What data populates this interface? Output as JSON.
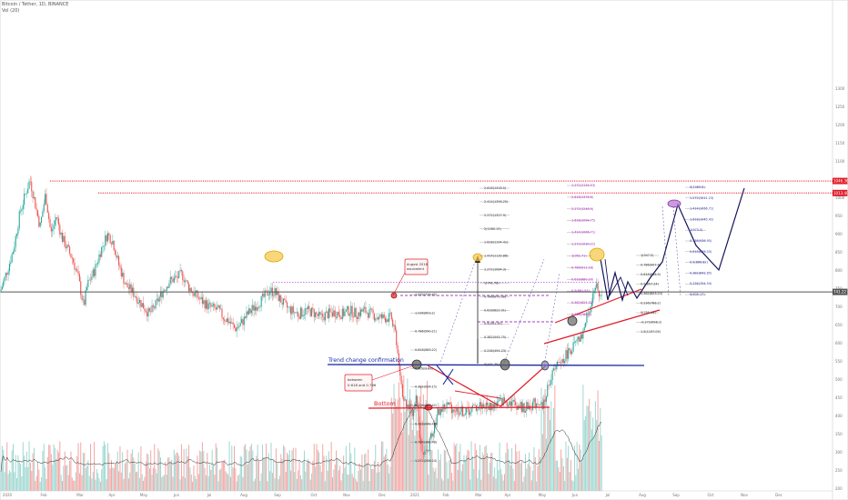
{
  "header": {
    "symbol": "Bitcoin / Tether, 1D, BINANCE",
    "indicator": "Vol (20)"
  },
  "chart_data": {
    "type": "candlestick",
    "price_axis": {
      "ticks": [
        1300,
        1250,
        1200,
        1150,
        1100,
        1050,
        1000,
        950,
        900,
        850,
        800,
        750,
        700,
        650,
        600,
        550,
        500,
        450,
        400,
        350,
        300,
        250,
        200
      ],
      "ylim": [
        190,
        1340
      ]
    },
    "time_axis": {
      "ticks": [
        "2020",
        "Feb",
        "Mar",
        "Apr",
        "May",
        "Jun",
        "Jul",
        "Aug",
        "Sep",
        "Oct",
        "Nov",
        "Dec",
        "2021",
        "Feb",
        "Mar",
        "Apr",
        "May",
        "Jun",
        "Jul",
        "Aug",
        "Sep",
        "Oct",
        "Nov",
        "Dec"
      ]
    },
    "price_labels": [
      {
        "value": "1046.36",
        "price": 1046,
        "color": "#e11d2a"
      },
      {
        "value": "1013.40",
        "price": 1013,
        "color": "#e11d2a"
      },
      {
        "value": "741.22",
        "price": 741,
        "color": "#555555"
      }
    ],
    "horizontal_levels": [
      {
        "price": 1046,
        "color": "#e11d2a",
        "style": "dotted"
      },
      {
        "price": 1013,
        "color": "#e11d2a",
        "style": "dotted"
      },
      {
        "price": 741,
        "color": "#555555",
        "style": "solid"
      },
      {
        "price": 767,
        "color": "#a040c0",
        "style": "dotted"
      }
    ],
    "annotations": [
      {
        "text": "Trend change confirmation",
        "color": "#1a2aa0"
      },
      {
        "text": "Bottom",
        "color": "#e11d2a"
      },
      {
        "text": "August 2018 equivalent",
        "color": "#333333"
      },
      {
        "text": "between 0.618 and 0.786",
        "color": "#333333"
      }
    ],
    "fib_left": [
      "2.618(1418.5)",
      "2.414(1356.25)",
      "2.272(1327.9)",
      "2(1280.15)",
      "1.618(1194.41)",
      "1.414(1130.86)",
      "1.272(1084.3)",
      "1(741.78)",
      "0.786(670.38)",
      "0.618(622.01)",
      "0.5(591.35)",
      "0.382(545.75)",
      "0.236(494.23)",
      "0(441.75)"
    ],
    "fib_mid": [
      "1.272(719.45)",
      "1.036(653.2)",
      "0.786(590.21)",
      "0.618(583.22)",
      "0.5(523.83)",
      "0.382(524.15)",
      "0.236(482.42)",
      "0.618(448.45)",
      "0.786(388.48)",
      "1.272(256.24)"
    ],
    "fib_right_magenta": [
      "1.272(1134.53)",
      "2.618(1376.6)",
      "2.272(1248.9)",
      "1.618(1099.75)",
      "1.414(1066.71)",
      "1.272(1030.22)",
      "1(962.71)",
      "0.786(911.18)",
      "0.618(880.29)",
      "0.5(861.97)",
      "0.382(824.33)",
      "0.236(789.4)"
    ],
    "fib_right_black": [
      "1(947.5)",
      "0.786(907.4)",
      "0.618(886.9)",
      "0.5(857.24)",
      "0.382(823.24)",
      "0.236(788.2)",
      "0(755.14)",
      "-0.272(698.3)",
      "1.5(1197.09)"
    ],
    "fib_far_right": [
      "0(1089.8)",
      "1.272(1011.23)",
      "1.414(1056.71)",
      "1.618(1045.42)",
      "1(973.5)",
      "0.786(936.95)",
      "0.618(895.03)",
      "0.5(866.82)",
      "0.382(842.85)",
      "0.236(794.54)",
      "0(635.17)"
    ]
  }
}
